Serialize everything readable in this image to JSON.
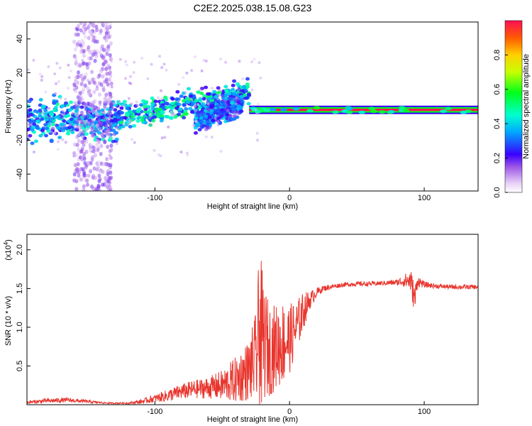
{
  "figure": {
    "title": "C2E2.2025.038.15.08.G23"
  },
  "chart_data": [
    {
      "type": "heatmap",
      "xlabel": "Height of straight line (km)",
      "ylabel": "Frequency (Hz)",
      "xlim": [
        -195,
        140
      ],
      "ylim": [
        -50,
        50
      ],
      "xticks": [
        -100,
        0,
        100
      ],
      "xtick_labels": [
        "-100",
        "0",
        "100"
      ],
      "yticks": [
        -40,
        -20,
        0,
        20,
        40
      ],
      "ytick_labels": [
        "-40",
        "-20",
        "0",
        "20",
        "40"
      ],
      "colorbar": {
        "label": "Normalized spectral amplitude",
        "range": [
          0.0,
          1.0
        ],
        "ticks": [
          0.0,
          0.2,
          0.4,
          0.6,
          0.8
        ],
        "tick_labels": [
          "0.0",
          "0.2",
          "0.4",
          "0.6",
          "0.8"
        ]
      },
      "features": [
        {
          "x_range": [
            -195,
            -125
          ],
          "freq_center": -8,
          "freq_width": 16,
          "amplitude": 0.35
        },
        {
          "x_range": [
            -160,
            -132
          ],
          "freq_range": [
            -50,
            50
          ],
          "amplitude": 0.12
        },
        {
          "x_range": [
            -125,
            -30
          ],
          "freq_start": -6,
          "freq_end": 8,
          "amplitude": 0.4
        },
        {
          "x_range": [
            -70,
            -35
          ],
          "freq_start": -8,
          "freq_end": 2,
          "amplitude": 0.3
        },
        {
          "x_range": [
            -30,
            140
          ],
          "freq_center": -2,
          "freq_width": 3,
          "amplitude": 0.95
        }
      ]
    },
    {
      "type": "line",
      "xlabel": "Height of straight line (km)",
      "ylabel": "SNR (10 * v/v)",
      "y_multiplier": "(x10",
      "y_multiplier_exp": "4",
      "y_multiplier_close": ")",
      "xlim": [
        -195,
        140
      ],
      "ylim": [
        0.0,
        2.2
      ],
      "xticks": [
        -100,
        0,
        100
      ],
      "xtick_labels": [
        "-100",
        "0",
        "100"
      ],
      "yticks": [
        0.5,
        1.0,
        1.5,
        2.0
      ],
      "ytick_labels": [
        "0.5",
        "1.0",
        "1.5",
        "2.0"
      ],
      "color": "#e8352d",
      "x": [
        -195,
        -180,
        -165,
        -150,
        -135,
        -120,
        -110,
        -100,
        -90,
        -80,
        -70,
        -60,
        -50,
        -40,
        -30,
        -25,
        -22,
        -20,
        -15,
        -10,
        -5,
        0,
        5,
        10,
        15,
        20,
        25,
        30,
        40,
        50,
        60,
        70,
        80,
        85,
        90,
        93,
        95,
        100,
        110,
        120,
        130,
        140
      ],
      "y": [
        0.03,
        0.05,
        0.06,
        0.04,
        0.02,
        0.02,
        0.04,
        0.08,
        0.12,
        0.17,
        0.2,
        0.22,
        0.25,
        0.32,
        0.45,
        0.6,
        0.9,
        0.85,
        0.7,
        0.75,
        0.8,
        0.85,
        1.0,
        1.2,
        1.35,
        1.45,
        1.5,
        1.52,
        1.55,
        1.56,
        1.56,
        1.57,
        1.58,
        1.6,
        1.6,
        1.35,
        1.6,
        1.55,
        1.53,
        1.52,
        1.52,
        1.52
      ],
      "noise_amplitude": [
        0.02,
        0.03,
        0.03,
        0.02,
        0.01,
        0.01,
        0.03,
        0.05,
        0.08,
        0.1,
        0.12,
        0.14,
        0.2,
        0.3,
        0.4,
        0.6,
        1.2,
        0.8,
        0.6,
        0.55,
        0.55,
        0.45,
        0.35,
        0.25,
        0.12,
        0.06,
        0.04,
        0.03,
        0.03,
        0.03,
        0.03,
        0.03,
        0.04,
        0.08,
        0.15,
        0.2,
        0.08,
        0.04,
        0.03,
        0.03,
        0.03,
        0.03
      ]
    }
  ]
}
